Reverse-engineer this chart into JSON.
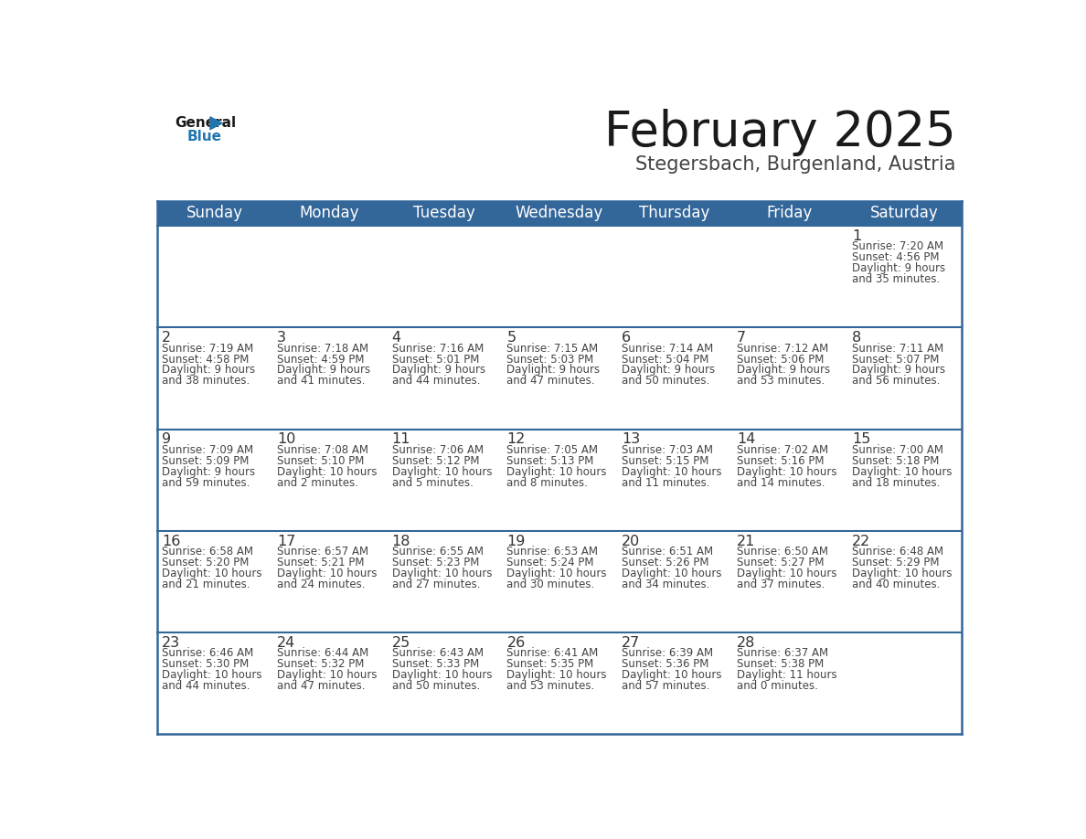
{
  "title": "February 2025",
  "subtitle": "Stegersbach, Burgenland, Austria",
  "days_of_week": [
    "Sunday",
    "Monday",
    "Tuesday",
    "Wednesday",
    "Thursday",
    "Friday",
    "Saturday"
  ],
  "header_bg": "#336699",
  "header_text": "#FFFFFF",
  "cell_bg": "#FFFFFF",
  "row_divider_color": "#336699",
  "outer_border_color": "#336699",
  "day_number_color": "#333333",
  "text_color": "#444444",
  "title_color": "#1a1a1a",
  "subtitle_color": "#444444",
  "logo_general_color": "#1a1a1a",
  "logo_blue_color": "#2176ae",
  "calendar_data": [
    [
      {
        "day": null,
        "sunrise": null,
        "sunset": null,
        "daylight_line1": null,
        "daylight_line2": null
      },
      {
        "day": null,
        "sunrise": null,
        "sunset": null,
        "daylight_line1": null,
        "daylight_line2": null
      },
      {
        "day": null,
        "sunrise": null,
        "sunset": null,
        "daylight_line1": null,
        "daylight_line2": null
      },
      {
        "day": null,
        "sunrise": null,
        "sunset": null,
        "daylight_line1": null,
        "daylight_line2": null
      },
      {
        "day": null,
        "sunrise": null,
        "sunset": null,
        "daylight_line1": null,
        "daylight_line2": null
      },
      {
        "day": null,
        "sunrise": null,
        "sunset": null,
        "daylight_line1": null,
        "daylight_line2": null
      },
      {
        "day": 1,
        "sunrise": "7:20 AM",
        "sunset": "4:56 PM",
        "daylight_line1": "Daylight: 9 hours",
        "daylight_line2": "and 35 minutes."
      }
    ],
    [
      {
        "day": 2,
        "sunrise": "7:19 AM",
        "sunset": "4:58 PM",
        "daylight_line1": "Daylight: 9 hours",
        "daylight_line2": "and 38 minutes."
      },
      {
        "day": 3,
        "sunrise": "7:18 AM",
        "sunset": "4:59 PM",
        "daylight_line1": "Daylight: 9 hours",
        "daylight_line2": "and 41 minutes."
      },
      {
        "day": 4,
        "sunrise": "7:16 AM",
        "sunset": "5:01 PM",
        "daylight_line1": "Daylight: 9 hours",
        "daylight_line2": "and 44 minutes."
      },
      {
        "day": 5,
        "sunrise": "7:15 AM",
        "sunset": "5:03 PM",
        "daylight_line1": "Daylight: 9 hours",
        "daylight_line2": "and 47 minutes."
      },
      {
        "day": 6,
        "sunrise": "7:14 AM",
        "sunset": "5:04 PM",
        "daylight_line1": "Daylight: 9 hours",
        "daylight_line2": "and 50 minutes."
      },
      {
        "day": 7,
        "sunrise": "7:12 AM",
        "sunset": "5:06 PM",
        "daylight_line1": "Daylight: 9 hours",
        "daylight_line2": "and 53 minutes."
      },
      {
        "day": 8,
        "sunrise": "7:11 AM",
        "sunset": "5:07 PM",
        "daylight_line1": "Daylight: 9 hours",
        "daylight_line2": "and 56 minutes."
      }
    ],
    [
      {
        "day": 9,
        "sunrise": "7:09 AM",
        "sunset": "5:09 PM",
        "daylight_line1": "Daylight: 9 hours",
        "daylight_line2": "and 59 minutes."
      },
      {
        "day": 10,
        "sunrise": "7:08 AM",
        "sunset": "5:10 PM",
        "daylight_line1": "Daylight: 10 hours",
        "daylight_line2": "and 2 minutes."
      },
      {
        "day": 11,
        "sunrise": "7:06 AM",
        "sunset": "5:12 PM",
        "daylight_line1": "Daylight: 10 hours",
        "daylight_line2": "and 5 minutes."
      },
      {
        "day": 12,
        "sunrise": "7:05 AM",
        "sunset": "5:13 PM",
        "daylight_line1": "Daylight: 10 hours",
        "daylight_line2": "and 8 minutes."
      },
      {
        "day": 13,
        "sunrise": "7:03 AM",
        "sunset": "5:15 PM",
        "daylight_line1": "Daylight: 10 hours",
        "daylight_line2": "and 11 minutes."
      },
      {
        "day": 14,
        "sunrise": "7:02 AM",
        "sunset": "5:16 PM",
        "daylight_line1": "Daylight: 10 hours",
        "daylight_line2": "and 14 minutes."
      },
      {
        "day": 15,
        "sunrise": "7:00 AM",
        "sunset": "5:18 PM",
        "daylight_line1": "Daylight: 10 hours",
        "daylight_line2": "and 18 minutes."
      }
    ],
    [
      {
        "day": 16,
        "sunrise": "6:58 AM",
        "sunset": "5:20 PM",
        "daylight_line1": "Daylight: 10 hours",
        "daylight_line2": "and 21 minutes."
      },
      {
        "day": 17,
        "sunrise": "6:57 AM",
        "sunset": "5:21 PM",
        "daylight_line1": "Daylight: 10 hours",
        "daylight_line2": "and 24 minutes."
      },
      {
        "day": 18,
        "sunrise": "6:55 AM",
        "sunset": "5:23 PM",
        "daylight_line1": "Daylight: 10 hours",
        "daylight_line2": "and 27 minutes."
      },
      {
        "day": 19,
        "sunrise": "6:53 AM",
        "sunset": "5:24 PM",
        "daylight_line1": "Daylight: 10 hours",
        "daylight_line2": "and 30 minutes."
      },
      {
        "day": 20,
        "sunrise": "6:51 AM",
        "sunset": "5:26 PM",
        "daylight_line1": "Daylight: 10 hours",
        "daylight_line2": "and 34 minutes."
      },
      {
        "day": 21,
        "sunrise": "6:50 AM",
        "sunset": "5:27 PM",
        "daylight_line1": "Daylight: 10 hours",
        "daylight_line2": "and 37 minutes."
      },
      {
        "day": 22,
        "sunrise": "6:48 AM",
        "sunset": "5:29 PM",
        "daylight_line1": "Daylight: 10 hours",
        "daylight_line2": "and 40 minutes."
      }
    ],
    [
      {
        "day": 23,
        "sunrise": "6:46 AM",
        "sunset": "5:30 PM",
        "daylight_line1": "Daylight: 10 hours",
        "daylight_line2": "and 44 minutes."
      },
      {
        "day": 24,
        "sunrise": "6:44 AM",
        "sunset": "5:32 PM",
        "daylight_line1": "Daylight: 10 hours",
        "daylight_line2": "and 47 minutes."
      },
      {
        "day": 25,
        "sunrise": "6:43 AM",
        "sunset": "5:33 PM",
        "daylight_line1": "Daylight: 10 hours",
        "daylight_line2": "and 50 minutes."
      },
      {
        "day": 26,
        "sunrise": "6:41 AM",
        "sunset": "5:35 PM",
        "daylight_line1": "Daylight: 10 hours",
        "daylight_line2": "and 53 minutes."
      },
      {
        "day": 27,
        "sunrise": "6:39 AM",
        "sunset": "5:36 PM",
        "daylight_line1": "Daylight: 10 hours",
        "daylight_line2": "and 57 minutes."
      },
      {
        "day": 28,
        "sunrise": "6:37 AM",
        "sunset": "5:38 PM",
        "daylight_line1": "Daylight: 11 hours",
        "daylight_line2": "and 0 minutes."
      },
      {
        "day": null,
        "sunrise": null,
        "sunset": null,
        "daylight_line1": null,
        "daylight_line2": null
      }
    ]
  ]
}
